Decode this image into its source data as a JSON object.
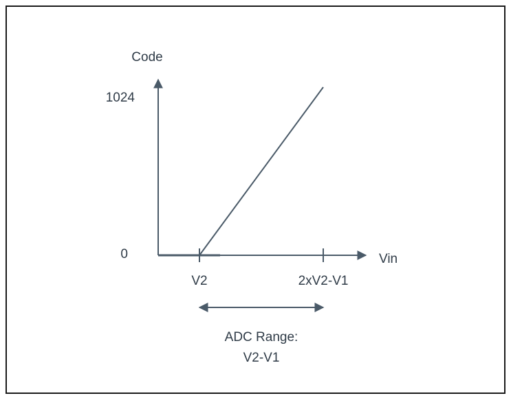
{
  "diagram": {
    "y_axis_label": "Code",
    "y_tick_max": "1024",
    "y_tick_zero": "0",
    "x_axis_label": "Vin",
    "x_tick_v2": "V2",
    "x_tick_end": "2xV2-V1",
    "range_line1": "ADC Range:",
    "range_line2": "V2-V1",
    "line_color": "#4a5a68"
  }
}
